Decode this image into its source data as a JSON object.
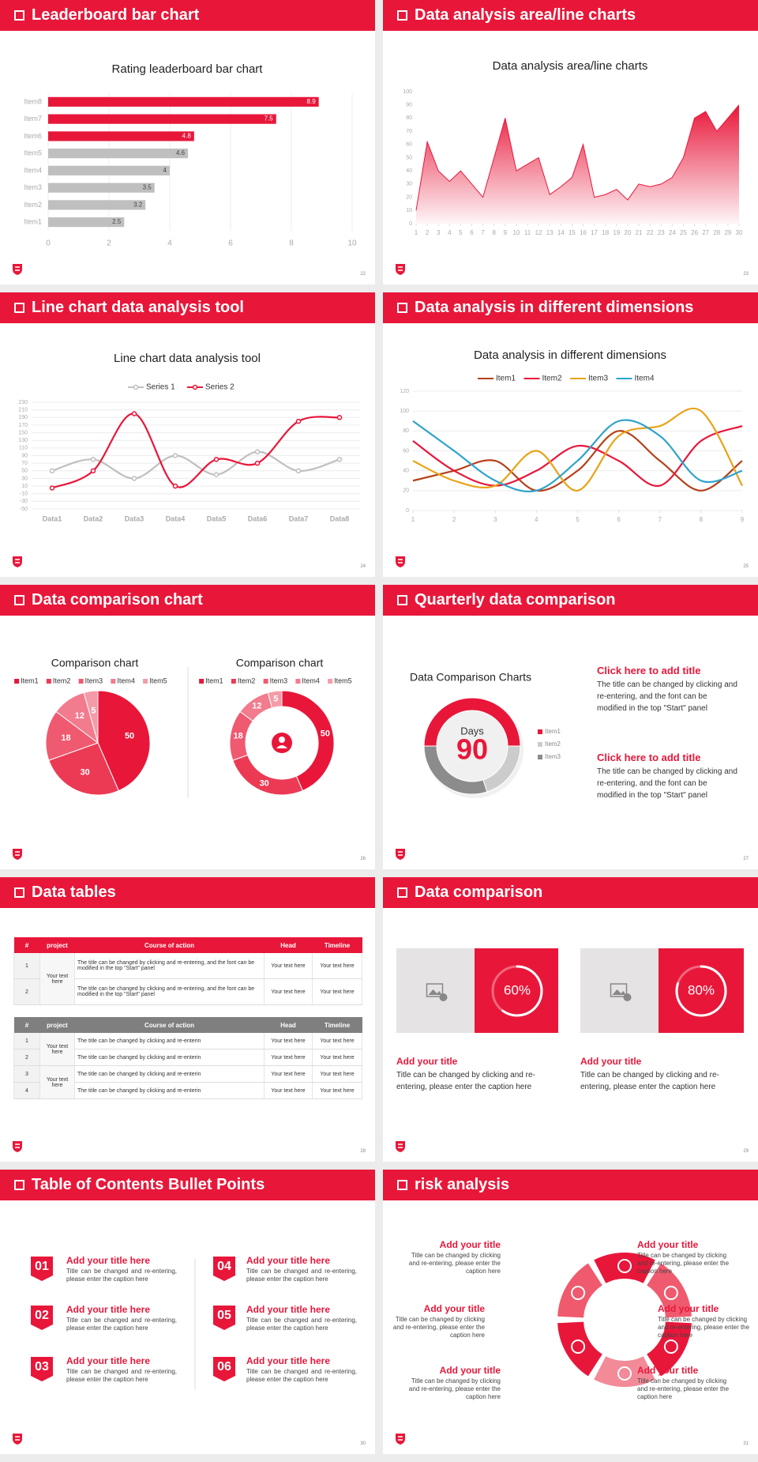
{
  "slides": [
    {
      "header": "Leaderboard bar chart",
      "page": "22"
    },
    {
      "header": "Data analysis area/line charts",
      "page": "23"
    },
    {
      "header": "Line chart data analysis tool",
      "page": "24"
    },
    {
      "header": "Data analysis in different dimensions",
      "page": "25"
    },
    {
      "header": "Data comparison chart",
      "page": "26"
    },
    {
      "header": "Quarterly data comparison",
      "page": "27"
    },
    {
      "header": "Data tables",
      "page": "28"
    },
    {
      "header": "Data comparison",
      "page": "29"
    },
    {
      "header": "Table of Contents Bullet Points",
      "page": "30"
    },
    {
      "header": "risk analysis",
      "page": "31"
    }
  ],
  "chart_data": [
    {
      "type": "bar",
      "title": "Rating leaderboard bar chart",
      "categories": [
        "Item1",
        "Item2",
        "Item3",
        "Item4",
        "Item5",
        "Item6",
        "Item7",
        "Item8"
      ],
      "values": [
        2.5,
        3.2,
        3.5,
        4,
        4.6,
        4.8,
        7.5,
        8.9
      ],
      "colors": [
        "#bfbfbf",
        "#bfbfbf",
        "#bfbfbf",
        "#bfbfbf",
        "#bfbfbf",
        "#e8173a",
        "#e8173a",
        "#e8173a"
      ],
      "xlim": [
        0,
        10
      ],
      "xticks": [
        0,
        2,
        4,
        6,
        8,
        10
      ],
      "grid": true
    },
    {
      "type": "area",
      "title": "Data analysis area/line charts",
      "x": [
        1,
        2,
        3,
        4,
        5,
        6,
        7,
        8,
        9,
        10,
        11,
        12,
        13,
        14,
        15,
        16,
        17,
        18,
        19,
        20,
        21,
        22,
        23,
        24,
        25,
        26,
        27,
        28,
        29,
        30
      ],
      "values": [
        10,
        62,
        40,
        32,
        40,
        30,
        20,
        50,
        80,
        40,
        45,
        50,
        22,
        28,
        35,
        60,
        20,
        22,
        26,
        18,
        30,
        28,
        30,
        35,
        50,
        80,
        85,
        70,
        80,
        90
      ],
      "color": "#e8173a",
      "xlim": [
        1,
        30
      ],
      "xticks": [
        1,
        2,
        3,
        4,
        5,
        6,
        7,
        8,
        9,
        10,
        11,
        12,
        13,
        14,
        15,
        16,
        17,
        18,
        19,
        20,
        21,
        22,
        23,
        24,
        25,
        26,
        27,
        28,
        29,
        30
      ],
      "ylim": [
        0,
        100
      ],
      "yticks": [
        0,
        10,
        20,
        30,
        40,
        50,
        60,
        70,
        80,
        90,
        100
      ]
    },
    {
      "type": "line",
      "smooth": true,
      "markers": true,
      "title": "Line chart data analysis tool",
      "categories": [
        "Data1",
        "Data2",
        "Data3",
        "Data4",
        "Data5",
        "Data6",
        "Data7",
        "Data8"
      ],
      "series": [
        {
          "name": "Series 1",
          "color": "#bfbfbf",
          "values": [
            50,
            80,
            30,
            90,
            40,
            100,
            50,
            80
          ]
        },
        {
          "name": "Series 2",
          "color": "#e8173a",
          "values": [
            5,
            50,
            200,
            10,
            80,
            70,
            180,
            190
          ]
        }
      ],
      "ylim": [
        -50,
        230
      ],
      "yticks": [
        -50,
        -30,
        -10,
        10,
        30,
        50,
        70,
        90,
        110,
        130,
        150,
        170,
        190,
        210,
        230
      ],
      "grid": true,
      "legend": "top"
    },
    {
      "type": "line",
      "smooth": true,
      "title": "Data analysis in different dimensions",
      "x": [
        1,
        2,
        3,
        4,
        5,
        6,
        7,
        8,
        9
      ],
      "series": [
        {
          "name": "Item1",
          "color": "#b5401a",
          "values": [
            30,
            40,
            50,
            20,
            40,
            80,
            50,
            20,
            50
          ]
        },
        {
          "name": "Item2",
          "color": "#e8173a",
          "values": [
            70,
            40,
            25,
            40,
            65,
            50,
            25,
            70,
            85
          ]
        },
        {
          "name": "Item3",
          "color": "#e8a317",
          "values": [
            50,
            30,
            25,
            60,
            20,
            75,
            85,
            100,
            25
          ]
        },
        {
          "name": "Item4",
          "color": "#2ea3cc",
          "values": [
            90,
            60,
            30,
            20,
            50,
            90,
            75,
            30,
            40
          ]
        }
      ],
      "xlim": [
        1,
        9
      ],
      "xticks": [
        1,
        2,
        3,
        4,
        5,
        6,
        7,
        8,
        9
      ],
      "ylim": [
        0,
        120
      ],
      "yticks": [
        0,
        20,
        40,
        60,
        80,
        100,
        120
      ],
      "grid": true,
      "legend": "top"
    },
    {
      "type": "pie",
      "title": "Comparison chart",
      "categories": [
        "Item1",
        "Item2",
        "Item3",
        "Item4",
        "Item5"
      ],
      "values": [
        50,
        30,
        18,
        12,
        5
      ],
      "colors": [
        "#e8173a",
        "#ec3a55",
        "#ef5a70",
        "#f27b8d",
        "#f59ba8"
      ],
      "legend": "top"
    },
    {
      "type": "donut",
      "title": "Comparison chart",
      "categories": [
        "Item1",
        "Item2",
        "Item3",
        "Item4",
        "Item5"
      ],
      "values": [
        50,
        30,
        18,
        12,
        5
      ],
      "colors": [
        "#e8173a",
        "#ec3a55",
        "#ef5a70",
        "#f27b8d",
        "#f59ba8"
      ],
      "legend": "top"
    },
    {
      "type": "donut",
      "title": "Data Comparison Charts",
      "center_label": "Days",
      "center_value": "90",
      "categories": [
        "Item1",
        "Item2",
        "Item3"
      ],
      "values": [
        50,
        20,
        30
      ],
      "colors": [
        "#e8173a",
        "#cccccc",
        "#8c8c8c"
      ],
      "legend": "right"
    },
    {
      "type": "progress",
      "values": [
        60
      ],
      "value_labels": [
        "60%"
      ],
      "ylim": [
        0,
        100
      ]
    },
    {
      "type": "progress",
      "values": [
        80
      ],
      "value_labels": [
        "80%"
      ],
      "ylim": [
        0,
        100
      ]
    }
  ],
  "quarterly": {
    "blocks": [
      {
        "title": "Click here to add title",
        "text": "The title can be changed by clicking and re-entering, and the font can be modified in the top \"Start\" panel"
      },
      {
        "title": "Click here to add title",
        "text": "The title can be changed by clicking and re-entering, and the font can be modified in the top \"Start\" panel"
      }
    ]
  },
  "tables": [
    {
      "header": [
        "#",
        "project",
        "Course of action",
        "Head",
        "Timeline"
      ],
      "groups": [
        {
          "project": "Your text here",
          "rows": [
            [
              "1",
              "The title can be changed by clicking and re-entering, and the font can be modified in the top \"Start\" panel",
              "Your text here",
              "Your text here"
            ],
            [
              "2",
              "The title can be changed by clicking and re-entering, and the font can be modified in the top \"Start\" panel",
              "Your text here",
              "Your text here"
            ]
          ]
        }
      ]
    },
    {
      "header": [
        "#",
        "project",
        "Course of action",
        "Head",
        "Timeline"
      ],
      "groups": [
        {
          "project": "Your text here",
          "rows": [
            [
              "1",
              "The title can be changed by clicking and re-enterin",
              "Your text here",
              "Your text here"
            ],
            [
              "2",
              "The title can be changed by clicking and re-enterin",
              "Your text here",
              "Your text here"
            ]
          ]
        },
        {
          "project": "Your text here",
          "rows": [
            [
              "3",
              "The title can be changed by clicking and re-enterin",
              "Your text here",
              "Your text here"
            ],
            [
              "4",
              "The title can be changed by clicking and re-enterin",
              "Your text here",
              "Your text here"
            ]
          ]
        }
      ]
    }
  ],
  "cards": [
    {
      "title": "Add your title",
      "text": "Title can be changed by clicking and re-entering, please enter the caption here"
    },
    {
      "title": "Add your title",
      "text": "Title can be changed by clicking and re-entering, please enter the caption here"
    }
  ],
  "toc": [
    {
      "num": "01",
      "title": "Add your title here",
      "text": "Title can be changed and re-entering, please enter the caption here"
    },
    {
      "num": "02",
      "title": "Add your title here",
      "text": "Title can be changed and re-entering, please enter the caption here"
    },
    {
      "num": "03",
      "title": "Add your title here",
      "text": "Title can be changed and re-entering, please enter the caption here"
    },
    {
      "num": "04",
      "title": "Add your title here",
      "text": "Title can be changed and re-entering, please enter the caption here"
    },
    {
      "num": "05",
      "title": "Add your title here",
      "text": "Title can be changed and re-entering, please enter the caption here"
    },
    {
      "num": "06",
      "title": "Add your title here",
      "text": "Title can be changed and re-entering, please enter the caption here"
    }
  ],
  "risk": [
    {
      "title": "Add your title",
      "text": "Title can be changed by clicking and re-entering, please enter the caption here"
    },
    {
      "title": "Add your title",
      "text": "Title can be changed by clicking and re-entering, please enter the caption here"
    },
    {
      "title": "Add your title",
      "text": "Title can be changed by clicking and re-entering, please enter the caption here"
    },
    {
      "title": "Add your title",
      "text": "Title can be changed by clicking and re-entering, please enter the caption here"
    },
    {
      "title": "Add your title",
      "text": "Title can be changed by clicking and re-entering, please enter the caption here"
    },
    {
      "title": "Add your title",
      "text": "Title can be changed by clicking and re-entering, please enter the caption here"
    }
  ]
}
